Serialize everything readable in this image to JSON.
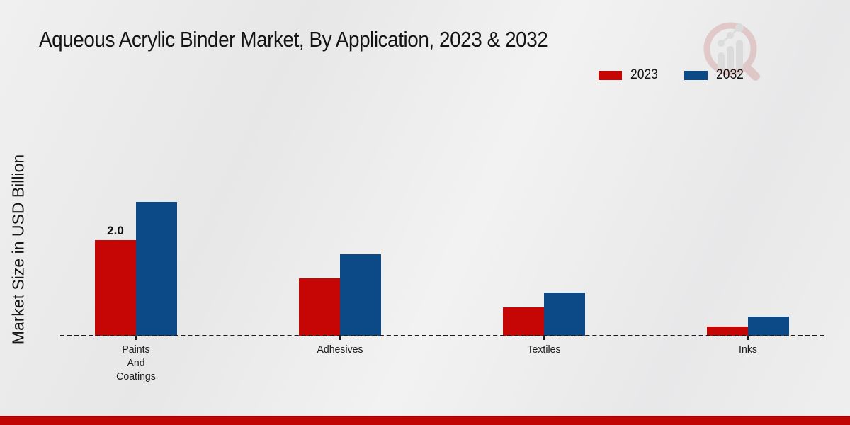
{
  "chart_data": {
    "type": "bar",
    "title": "Aqueous Acrylic Binder Market, By Application, 2023 & 2032",
    "xlabel": "",
    "ylabel": "Market Size in USD Billion",
    "categories": [
      "Paints\nAnd\nCoatings",
      "Adhesives",
      "Textiles",
      "Inks"
    ],
    "series": [
      {
        "name": "2023",
        "color": "#c60505",
        "values": [
          2.0,
          1.2,
          0.6,
          0.2
        ]
      },
      {
        "name": "2032",
        "color": "#0b4a87",
        "values": [
          2.8,
          1.7,
          0.9,
          0.4
        ]
      }
    ],
    "bar_labels": [
      {
        "series": 0,
        "category": 0,
        "text": "2.0"
      }
    ],
    "ylim": [
      0,
      3.2
    ],
    "grid": false,
    "axis_style": "dashed-baseline",
    "legend_position": "top-right"
  },
  "branding": {
    "watermark_icon": "magnifier-trend-logo",
    "footer_bar_color": "#c10404"
  }
}
